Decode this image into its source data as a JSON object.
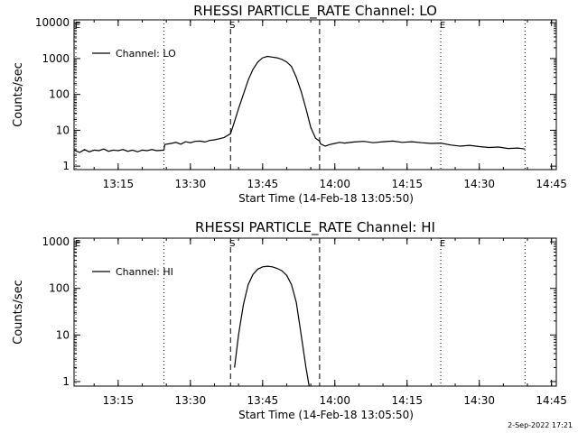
{
  "footer": {
    "timestamp": "2-Sep-2022 17:21"
  },
  "chart_data": [
    {
      "type": "line",
      "title": "RHESSI PARTICLE_RATE Channel: LO",
      "xlabel": "Start Time (14-Feb-18 13:05:50)",
      "ylabel": "Counts/sec",
      "yscale": "log",
      "xlim": [
        "13:05:50",
        "14:46:00"
      ],
      "ylim": [
        0.8,
        12000
      ],
      "x_ticks": [
        "13:15",
        "13:30",
        "13:45",
        "14:00",
        "14:15",
        "14:30",
        "14:45"
      ],
      "y_ticks": [
        "1",
        "10",
        "100",
        "1000",
        "10000"
      ],
      "legend": {
        "position": "top-left",
        "entries": [
          "Channel: LO"
        ]
      },
      "markers": [
        {
          "label": "E",
          "time": "13:05:50",
          "style": "dotted"
        },
        {
          "label": "",
          "time": "13:24:30",
          "style": "dotted"
        },
        {
          "label": "S",
          "time": "13:38:20",
          "style": "dashed"
        },
        {
          "label": "",
          "time": "13:56:50",
          "style": "dashed"
        },
        {
          "label": "E",
          "time": "14:22:00",
          "style": "dotted"
        },
        {
          "label": "",
          "time": "14:39:30",
          "style": "dotted"
        }
      ],
      "series": [
        {
          "name": "Channel: LO",
          "x": [
            "13:05:50",
            "13:07:00",
            "13:08:00",
            "13:09:00",
            "13:10:00",
            "13:11:00",
            "13:12:00",
            "13:13:00",
            "13:14:00",
            "13:15:00",
            "13:16:00",
            "13:17:00",
            "13:18:00",
            "13:19:00",
            "13:20:00",
            "13:21:00",
            "13:22:00",
            "13:23:00",
            "13:24:30",
            "13:24:40",
            "13:26:00",
            "13:27:00",
            "13:28:00",
            "13:29:00",
            "13:30:00",
            "13:31:00",
            "13:32:00",
            "13:33:00",
            "13:34:00",
            "13:35:00",
            "13:36:00",
            "13:37:00",
            "13:38:20",
            "13:39:00",
            "13:40:00",
            "13:41:00",
            "13:42:00",
            "13:43:00",
            "13:44:00",
            "13:45:00",
            "13:46:00",
            "13:47:00",
            "13:48:00",
            "13:49:00",
            "13:50:00",
            "13:51:00",
            "13:52:00",
            "13:53:00",
            "13:54:00",
            "13:55:00",
            "13:56:00",
            "13:56:50",
            "13:57:00",
            "13:58:00",
            "13:59:00",
            "14:00:00",
            "14:01:00",
            "14:02:00",
            "14:04:00",
            "14:06:00",
            "14:08:00",
            "14:10:00",
            "14:12:00",
            "14:14:00",
            "14:16:00",
            "14:18:00",
            "14:20:00",
            "14:22:00",
            "14:24:00",
            "14:26:00",
            "14:28:00",
            "14:30:00",
            "14:32:00",
            "14:34:00",
            "14:36:00",
            "14:38:00",
            "14:39:30"
          ],
          "y": [
            2.8,
            2.4,
            2.9,
            2.5,
            2.8,
            2.7,
            3.0,
            2.6,
            2.8,
            2.7,
            2.9,
            2.6,
            2.8,
            2.5,
            2.8,
            2.7,
            2.9,
            2.7,
            2.8,
            4.0,
            4.3,
            4.6,
            4.1,
            4.8,
            4.5,
            4.9,
            5.0,
            4.7,
            5.2,
            5.4,
            5.8,
            6.3,
            8.0,
            15,
            40,
            100,
            250,
            500,
            800,
            1050,
            1150,
            1100,
            1050,
            950,
            800,
            600,
            300,
            120,
            40,
            12,
            6,
            5,
            4.2,
            3.6,
            4.0,
            4.3,
            4.6,
            4.4,
            4.7,
            4.9,
            4.5,
            4.8,
            5.0,
            4.6,
            4.8,
            4.5,
            4.3,
            4.4,
            3.9,
            3.6,
            3.8,
            3.5,
            3.3,
            3.4,
            3.1,
            3.2,
            3.0
          ]
        }
      ]
    },
    {
      "type": "line",
      "title": "RHESSI PARTICLE_RATE Channel: HI",
      "xlabel": "Start Time (14-Feb-18 13:05:50)",
      "ylabel": "Counts/sec",
      "yscale": "log",
      "xlim": [
        "13:05:50",
        "14:46:00"
      ],
      "ylim": [
        0.8,
        1200
      ],
      "x_ticks": [
        "13:15",
        "13:30",
        "13:45",
        "14:00",
        "14:15",
        "14:30",
        "14:45"
      ],
      "y_ticks": [
        "1",
        "10",
        "100",
        "1000"
      ],
      "legend": {
        "position": "top-left",
        "entries": [
          "Channel: HI"
        ]
      },
      "markers": [
        {
          "label": "E",
          "time": "13:05:50",
          "style": "dotted"
        },
        {
          "label": "",
          "time": "13:24:30",
          "style": "dotted"
        },
        {
          "label": "S",
          "time": "13:38:20",
          "style": "dashed"
        },
        {
          "label": "",
          "time": "13:56:50",
          "style": "dashed"
        },
        {
          "label": "E",
          "time": "14:22:00",
          "style": "dotted"
        },
        {
          "label": "",
          "time": "14:39:30",
          "style": "dotted"
        }
      ],
      "series": [
        {
          "name": "Channel: HI",
          "x": [
            "13:39:10",
            "13:40:00",
            "13:41:00",
            "13:42:00",
            "13:43:00",
            "13:44:00",
            "13:45:00",
            "13:46:00",
            "13:47:00",
            "13:48:00",
            "13:49:00",
            "13:50:00",
            "13:51:00",
            "13:52:00",
            "13:53:00",
            "13:54:00",
            "13:54:40"
          ],
          "y": [
            2.0,
            10,
            45,
            120,
            200,
            260,
            290,
            300,
            290,
            270,
            240,
            190,
            120,
            50,
            10,
            2,
            0.8
          ]
        }
      ]
    }
  ]
}
